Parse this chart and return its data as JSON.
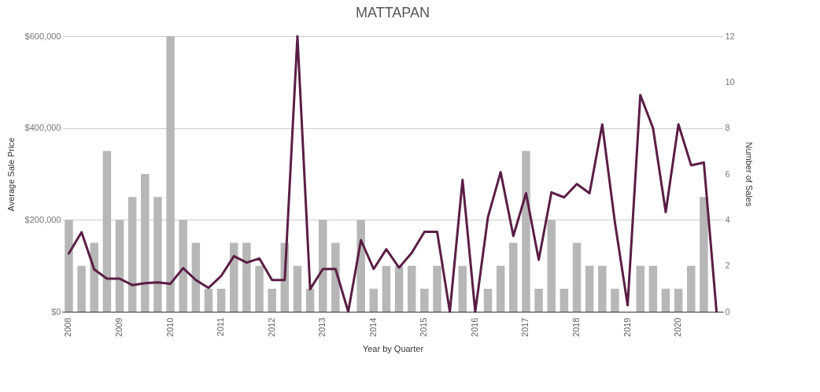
{
  "chart_data": {
    "type": "bar",
    "title": "MATTAPAN",
    "xlabel": "Year by Quarter",
    "ylabel": "Average Sale Price",
    "y2label": "Number of Sales",
    "categories": [
      "2008",
      null,
      null,
      null,
      "2009",
      null,
      null,
      null,
      "2010",
      null,
      null,
      null,
      "2011",
      null,
      null,
      null,
      "2012",
      null,
      null,
      null,
      "2013",
      null,
      null,
      null,
      "2014",
      null,
      null,
      null,
      "2015",
      null,
      null,
      null,
      "2016",
      null,
      null,
      null,
      "2017",
      null,
      null,
      null,
      "2018",
      null,
      null,
      null,
      "2019",
      null,
      null,
      null,
      "2020",
      null,
      null,
      null
    ],
    "series": [
      {
        "axis": "y2",
        "color": "#b7b7b7",
        "values": [
          4,
          2,
          3,
          7,
          4,
          5,
          6,
          5,
          12,
          4,
          3,
          1,
          1,
          3,
          3,
          2,
          1,
          3,
          2,
          1,
          4,
          3,
          0,
          4,
          1,
          2,
          2,
          2,
          1,
          2,
          0,
          2,
          0,
          1,
          2,
          3,
          7,
          1,
          4,
          1,
          3,
          2,
          2,
          1,
          0,
          2,
          2,
          1,
          1,
          2,
          5,
          0
        ]
      },
      {
        "type": "line",
        "color": "#5a1e45",
        "values": [
          127000,
          173000,
          92000,
          72000,
          72000,
          58000,
          62000,
          64000,
          61000,
          95000,
          69000,
          52000,
          78000,
          121000,
          107000,
          116000,
          69000,
          69000,
          600000,
          49000,
          93000,
          93000,
          0,
          156000,
          93000,
          136000,
          96000,
          128000,
          174000,
          174000,
          0,
          287000,
          0,
          206000,
          304000,
          165000,
          258000,
          113000,
          260000,
          249000,
          278000,
          258000,
          408000,
          194000,
          14000,
          472000,
          400000,
          217000,
          408000,
          319000,
          325000,
          0
        ]
      }
    ],
    "ylim": [
      0,
      600000
    ],
    "yticks": [
      {
        "value": 0,
        "label": "$0"
      },
      {
        "value": 200000,
        "label": "$200,000"
      },
      {
        "value": 400000,
        "label": "$400,000"
      },
      {
        "value": 600000,
        "label": "$600,000"
      }
    ],
    "y2lim": [
      0,
      12
    ],
    "y2ticks": [
      0,
      2,
      4,
      6,
      8,
      10,
      12
    ],
    "grid": "y"
  }
}
